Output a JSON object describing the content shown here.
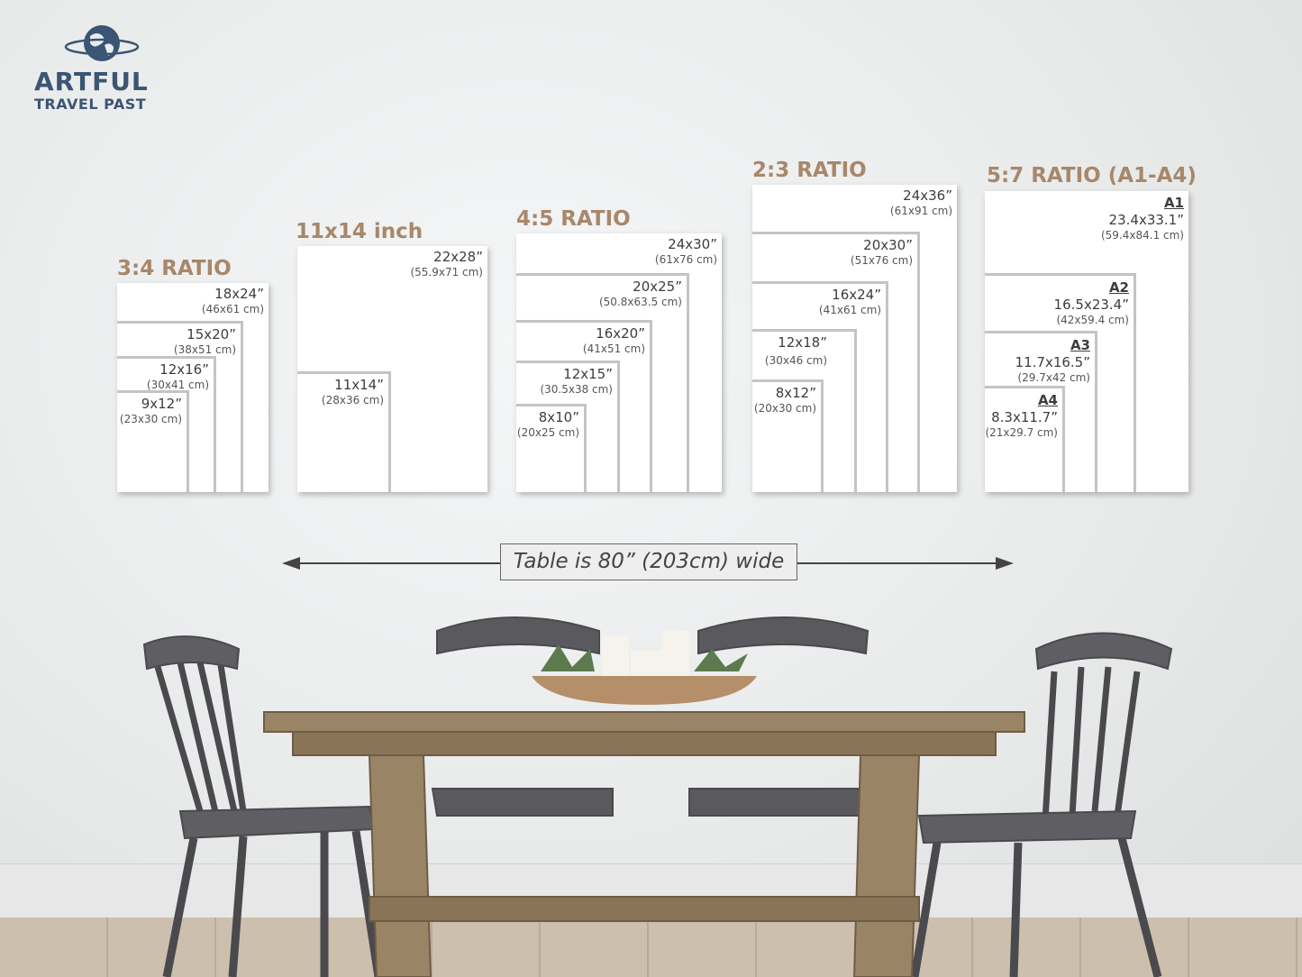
{
  "logo": {
    "line1": "ARTFUL",
    "line2": "TRAVEL PAST",
    "color": "#3b5574",
    "icon": "globe-icon"
  },
  "accent_color": "#a8876a",
  "groups": [
    {
      "title": "3:4 RATIO",
      "sizes": [
        {
          "in": "18x24”",
          "cm": "(46x61 cm)"
        },
        {
          "in": "15x20”",
          "cm": "(38x51 cm)"
        },
        {
          "in": "12x16”",
          "cm": "(30x41 cm)"
        },
        {
          "in": "9x12”",
          "cm": "(23x30 cm)"
        }
      ]
    },
    {
      "title": "11x14 inch",
      "sizes": [
        {
          "in": "22x28”",
          "cm": "(55.9x71 cm)"
        },
        {
          "in": "11x14”",
          "cm": "(28x36 cm)"
        }
      ]
    },
    {
      "title": "4:5 RATIO",
      "sizes": [
        {
          "in": "24x30”",
          "cm": "(61x76 cm)"
        },
        {
          "in": "20x25”",
          "cm": "(50.8x63.5 cm)"
        },
        {
          "in": "16x20”",
          "cm": "(41x51 cm)"
        },
        {
          "in": "12x15”",
          "cm": "(30.5x38 cm)"
        },
        {
          "in": "8x10”",
          "cm": "(20x25 cm)"
        }
      ]
    },
    {
      "title": "2:3 RATIO",
      "sizes": [
        {
          "in": "24x36”",
          "cm": "(61x91 cm)"
        },
        {
          "in": "20x30”",
          "cm": "(51x76 cm)"
        },
        {
          "in": "16x24”",
          "cm": "(41x61 cm)"
        },
        {
          "in": "12x18”",
          "cm": "(30x46 cm)"
        },
        {
          "in": "8x12”",
          "cm": "(20x30 cm)"
        }
      ]
    },
    {
      "title": "5:7 RATIO (A1-A4)",
      "sizes": [
        {
          "a": "A1",
          "in": "23.4x33.1”",
          "cm": "(59.4x84.1 cm)"
        },
        {
          "a": "A2",
          "in": "16.5x23.4”",
          "cm": "(42x59.4 cm)"
        },
        {
          "a": "A3",
          "in": "11.7x16.5”",
          "cm": "(29.7x42 cm)"
        },
        {
          "a": "A4",
          "in": "8.3x11.7”",
          "cm": "(21x29.7 cm)"
        }
      ]
    }
  ],
  "caption": "Table is 80” (203cm) wide"
}
